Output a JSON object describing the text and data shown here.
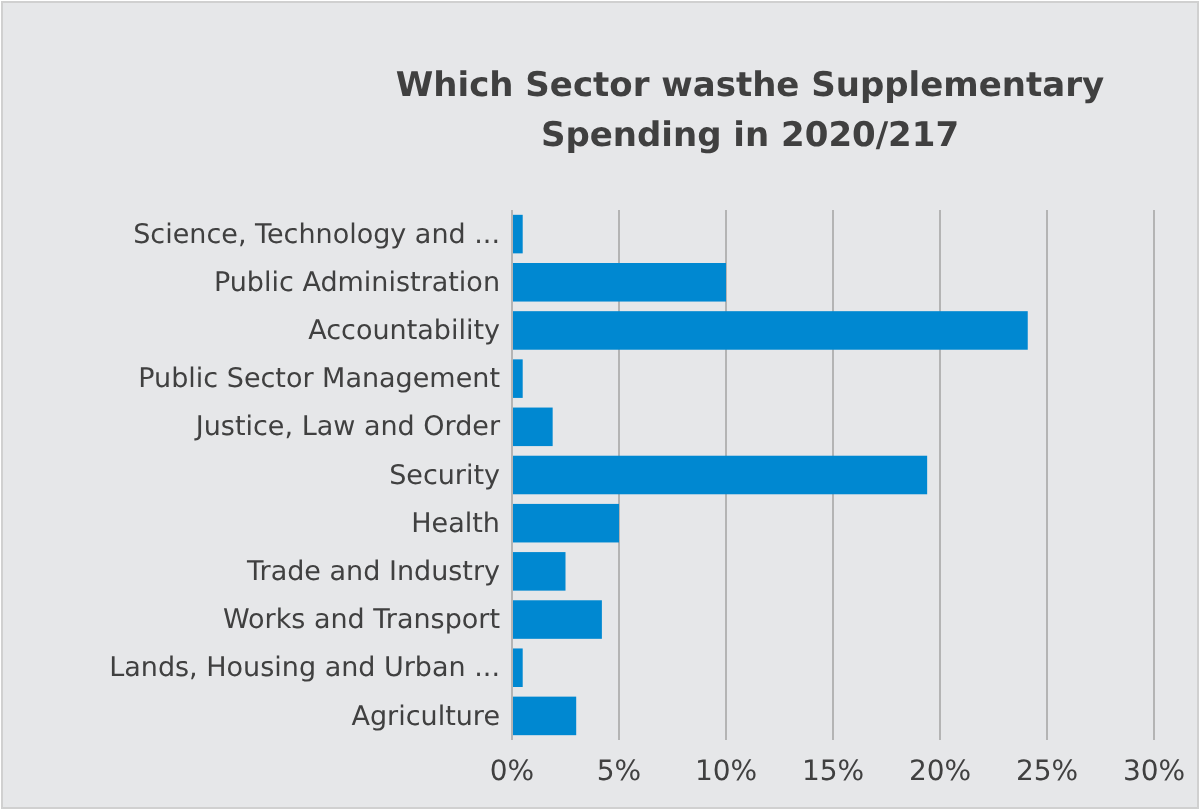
{
  "chart_data": {
    "type": "bar",
    "orientation": "horizontal",
    "title": "Which Sector wasthe Supplementary\nSpending in 2020/217",
    "categories": [
      "Science, Technology and ...",
      "Public Administration",
      "Accountability",
      "Public Sector Management",
      "Justice, Law and Order",
      "Security",
      "Health",
      "Trade and Industry",
      "Works and Transport",
      "Lands, Housing and Urban ...",
      "Agriculture"
    ],
    "values": [
      0.5,
      10,
      24.1,
      0.5,
      1.9,
      19.4,
      5,
      2.5,
      4.2,
      0.5,
      3
    ],
    "color": "#0088d1",
    "xlim": [
      0,
      30
    ],
    "xticks": [
      {
        "value": 0,
        "label": "0%"
      },
      {
        "value": 5,
        "label": "5%"
      },
      {
        "value": 10,
        "label": "10%"
      },
      {
        "value": 15,
        "label": "15%"
      },
      {
        "value": 20,
        "label": "20%"
      },
      {
        "value": 25,
        "label": "25%"
      },
      {
        "value": 30,
        "label": "30%"
      }
    ],
    "grid": "x"
  }
}
